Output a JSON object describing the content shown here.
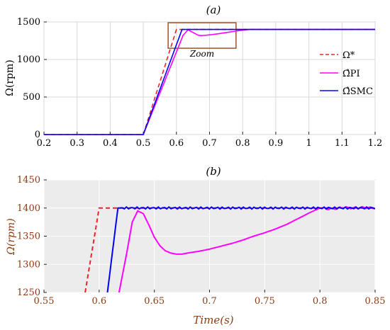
{
  "chart_data": [
    {
      "type": "line",
      "title": "(a)",
      "ylabel": "Ω(rpm)",
      "xlabel": "",
      "xlim": [
        0.2,
        1.2
      ],
      "ylim": [
        0,
        1500
      ],
      "xticks": [
        "0.2",
        "0.3",
        "0.4",
        "0.5",
        "0.6",
        "0.7",
        "0.8",
        "0.9",
        "1",
        "1.1",
        "1.2"
      ],
      "xtick_values": [
        0.2,
        0.3,
        0.4,
        0.5,
        0.6,
        0.7,
        0.8,
        0.9,
        1.0,
        1.1,
        1.2
      ],
      "yticks": [
        "0",
        "500",
        "1000",
        "1500"
      ],
      "ytick_values": [
        0,
        500,
        1000,
        1500
      ],
      "grid": true,
      "legend_position": "right",
      "zoom_label": "Zoom",
      "zoom_box": {
        "x": [
          0.575,
          0.78
        ],
        "y": [
          1150,
          1490
        ]
      },
      "series": [
        {
          "name": "Ω*",
          "color": "#e8242b",
          "dash": true,
          "x": [
            0.2,
            0.5,
            0.6,
            1.2
          ],
          "y": [
            0,
            0,
            1400,
            1400
          ]
        },
        {
          "name": "Ω̂PI",
          "color": "#ff00ff",
          "dash": false,
          "x": [
            0.2,
            0.5,
            0.62,
            0.635,
            0.65,
            0.665,
            0.675,
            0.7,
            0.73,
            0.76,
            0.79,
            0.82,
            1.2
          ],
          "y": [
            0,
            0,
            1320,
            1395,
            1360,
            1325,
            1318,
            1328,
            1345,
            1365,
            1385,
            1400,
            1400
          ]
        },
        {
          "name": "Ω̂SMC",
          "color": "#0000ff",
          "dash": false,
          "x": [
            0.2,
            0.5,
            0.617,
            0.63,
            1.2
          ],
          "y": [
            0,
            0,
            1400,
            1400,
            1400
          ]
        }
      ]
    },
    {
      "type": "line",
      "title": "(b)",
      "ylabel": "Ω(rpm)",
      "xlabel": "Time(s)",
      "xlim": [
        0.55,
        0.85
      ],
      "ylim": [
        1250,
        1450
      ],
      "xticks": [
        "0.55",
        "0.6",
        "0.65",
        "0.7",
        "0.75",
        "0.8",
        "0.85"
      ],
      "xtick_values": [
        0.55,
        0.6,
        0.65,
        0.7,
        0.75,
        0.8,
        0.85
      ],
      "yticks": [
        "1250",
        "1300",
        "1350",
        "1400",
        "1450"
      ],
      "ytick_values": [
        1250,
        1300,
        1350,
        1400,
        1450
      ],
      "grid": true,
      "series": [
        {
          "name": "Ω*",
          "color": "#e8242b",
          "dash": true,
          "x": [
            0.5873,
            0.6,
            0.85
          ],
          "y": [
            1250,
            1400,
            1400
          ]
        },
        {
          "name": "Ω̂PI",
          "color": "#ff00ff",
          "dash": false,
          "x": [
            0.618,
            0.625,
            0.63,
            0.635,
            0.64,
            0.645,
            0.65,
            0.655,
            0.66,
            0.665,
            0.67,
            0.675,
            0.68,
            0.69,
            0.7,
            0.71,
            0.72,
            0.73,
            0.74,
            0.75,
            0.76,
            0.77,
            0.78,
            0.79,
            0.8,
            0.81,
            0.82,
            0.83,
            0.84,
            0.85
          ],
          "y": [
            1250,
            1320,
            1375,
            1395,
            1390,
            1370,
            1348,
            1333,
            1324,
            1320,
            1318,
            1318,
            1320,
            1323,
            1327,
            1332,
            1337,
            1343,
            1350,
            1356,
            1363,
            1371,
            1381,
            1391,
            1400,
            1398,
            1401,
            1400,
            1401,
            1400
          ]
        },
        {
          "name": "Ω̂SMC",
          "color": "#0000ff",
          "dash": false,
          "x": [
            0.6075,
            0.617,
            0.85
          ],
          "y": [
            1250,
            1400,
            1400
          ]
        }
      ]
    }
  ]
}
